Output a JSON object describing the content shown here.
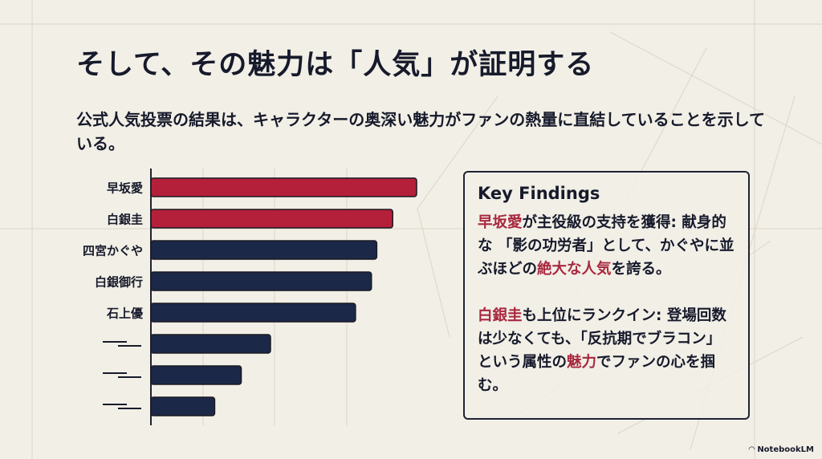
{
  "title": "そして、その魅力は「人気」が証明する",
  "subtitle": "公式人気投票の結果は、キャラクターの奥深い魅力がファンの熱量に直結していることを示している。",
  "chart_data": {
    "type": "bar",
    "orientation": "horizontal",
    "categories": [
      "早坂愛",
      "白銀圭",
      "四宮かぐや",
      "白銀御行",
      "石上優",
      "",
      "",
      ""
    ],
    "values": [
      100,
      91,
      85,
      83,
      77,
      45,
      34,
      24
    ],
    "highlight": [
      true,
      true,
      false,
      false,
      false,
      false,
      false,
      false
    ],
    "colors": {
      "highlight": "#b41f3a",
      "default": "#1c2848"
    },
    "xlim": [
      0,
      100
    ],
    "title": "",
    "xlabel": "",
    "ylabel": "",
    "grid": true
  },
  "findings": {
    "heading": "Key Findings",
    "p1": {
      "h1": "早坂愛",
      "t1": "が主役級の支持を獲得: 献身的な 「影の功労者」として、かぐやに並ぶほどの",
      "h2": "絶大な人気",
      "t2": "を誇る。"
    },
    "p2": {
      "h1": "白銀圭",
      "t1": "も上位にランクイン: 登場回数は少なくても、「反抗期でブラコン」という属性の",
      "h2": "魅力",
      "t2": "でファンの心を掴む。"
    }
  },
  "logo": "NotebookLM"
}
